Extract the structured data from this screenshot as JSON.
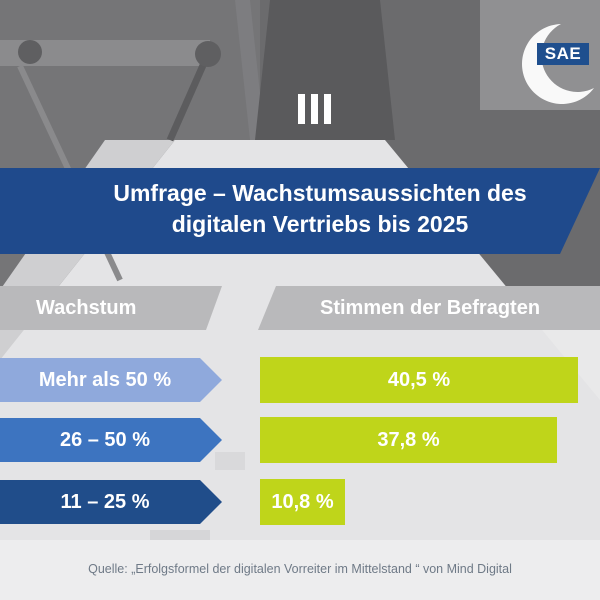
{
  "logo": {
    "text": "SAE"
  },
  "title": {
    "line1": "Umfrage – Wachstumsaussichten des",
    "line2": "digitalen Vertriebs bis 2025"
  },
  "headers": {
    "left": "Wachstum",
    "right": "Stimmen der Befragten"
  },
  "chart_data": {
    "type": "bar",
    "title": "Umfrage – Wachstumsaussichten des digitalen Vertriebs bis 2025",
    "categories": [
      "Mehr als 50 %",
      "26 – 50 %",
      "11 – 25 %"
    ],
    "values": [
      40.5,
      37.8,
      10.8
    ],
    "value_labels": [
      "40,5 %",
      "37,8 %",
      "10,8 %"
    ],
    "category_header": "Wachstum",
    "value_header": "Stimmen der Befragten",
    "orientation": "horizontal",
    "bar_color": "#bfd51a",
    "category_colors": [
      "#8fa9dc",
      "#3d74c0",
      "#204d8a"
    ]
  },
  "source": "Quelle: „Erfolgsformel der digitalen Vorreiter im Mittelstand “ von Mind Digital",
  "colors": {
    "title_banner": "#1f4a8c",
    "header_gray": "#b9b9bb",
    "logo_blue": "#1f4f8e"
  }
}
